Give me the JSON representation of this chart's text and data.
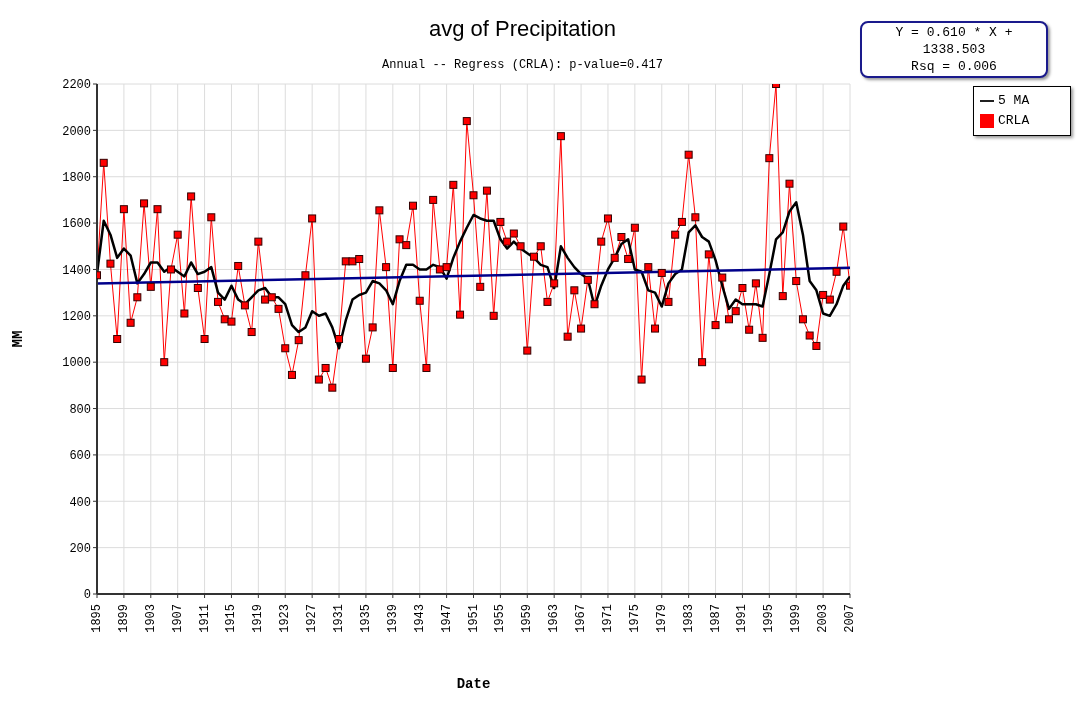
{
  "chart_data": {
    "type": "line",
    "title": "avg of Precipitation",
    "subtitle": "Annual -- Regress (CRLA): p-value=0.417",
    "xlabel": "Date",
    "ylabel": "MM",
    "annotations": [
      "Y = 0.610 * X + 1338.503",
      "Rsq = 0.006"
    ],
    "x": [
      1895,
      1896,
      1897,
      1898,
      1899,
      1900,
      1901,
      1902,
      1903,
      1904,
      1905,
      1906,
      1907,
      1908,
      1909,
      1910,
      1911,
      1912,
      1913,
      1914,
      1915,
      1916,
      1917,
      1918,
      1919,
      1920,
      1921,
      1922,
      1923,
      1924,
      1925,
      1926,
      1927,
      1928,
      1929,
      1930,
      1931,
      1932,
      1933,
      1934,
      1935,
      1936,
      1937,
      1938,
      1939,
      1940,
      1941,
      1942,
      1943,
      1944,
      1945,
      1946,
      1947,
      1948,
      1949,
      1950,
      1951,
      1952,
      1953,
      1954,
      1955,
      1956,
      1957,
      1958,
      1959,
      1960,
      1961,
      1962,
      1963,
      1964,
      1965,
      1966,
      1967,
      1968,
      1969,
      1970,
      1971,
      1972,
      1973,
      1974,
      1975,
      1976,
      1977,
      1978,
      1979,
      1980,
      1981,
      1982,
      1983,
      1984,
      1985,
      1986,
      1987,
      1988,
      1989,
      1990,
      1991,
      1992,
      1993,
      1994,
      1995,
      1996,
      1997,
      1998,
      1999,
      2000,
      2001,
      2002,
      2003,
      2004,
      2005,
      2006,
      2007
    ],
    "series": [
      {
        "name": "CRLA",
        "color": "#ff0000",
        "marker": "square",
        "values": [
          1375,
          1860,
          1425,
          1100,
          1660,
          1170,
          1280,
          1685,
          1325,
          1660,
          1000,
          1400,
          1550,
          1210,
          1715,
          1320,
          1100,
          1625,
          1260,
          1185,
          1175,
          1415,
          1245,
          1130,
          1520,
          1270,
          1280,
          1230,
          1060,
          945,
          1095,
          1375,
          1620,
          925,
          975,
          890,
          1100,
          1435,
          1435,
          1445,
          1015,
          1150,
          1655,
          1410,
          975,
          1530,
          1505,
          1675,
          1265,
          975,
          1700,
          1400,
          1410,
          1765,
          1205,
          2040,
          1720,
          1325,
          1740,
          1200,
          1605,
          1520,
          1555,
          1500,
          1050,
          1455,
          1500,
          1260,
          1340,
          1975,
          1110,
          1310,
          1145,
          1355,
          1250,
          1520,
          1620,
          1450,
          1540,
          1445,
          1580,
          925,
          1410,
          1145,
          1385,
          1260,
          1550,
          1605,
          1895,
          1625,
          1000,
          1465,
          1160,
          1365,
          1185,
          1220,
          1320,
          1140,
          1340,
          1105,
          1880,
          2200,
          1285,
          1770,
          1350,
          1185,
          1115,
          1070,
          1290,
          1270,
          1390,
          1585,
          1330
        ]
      },
      {
        "name": "5 MA",
        "color": "#000000",
        "marker": "none",
        "values": [
          1380,
          1610,
          1550,
          1450,
          1490,
          1460,
          1340,
          1380,
          1430,
          1430,
          1390,
          1410,
          1390,
          1370,
          1430,
          1380,
          1390,
          1410,
          1300,
          1270,
          1330,
          1270,
          1250,
          1280,
          1310,
          1320,
          1280,
          1280,
          1250,
          1160,
          1130,
          1150,
          1220,
          1200,
          1210,
          1150,
          1060,
          1180,
          1270,
          1290,
          1300,
          1350,
          1340,
          1310,
          1250,
          1350,
          1420,
          1420,
          1400,
          1400,
          1420,
          1410,
          1360,
          1450,
          1520,
          1580,
          1635,
          1620,
          1610,
          1610,
          1530,
          1490,
          1520,
          1490,
          1470,
          1450,
          1420,
          1410,
          1320,
          1500,
          1450,
          1410,
          1380,
          1360,
          1240,
          1330,
          1400,
          1450,
          1510,
          1530,
          1400,
          1390,
          1310,
          1300,
          1240,
          1340,
          1380,
          1400,
          1560,
          1590,
          1540,
          1520,
          1440,
          1330,
          1230,
          1270,
          1250,
          1250,
          1250,
          1240,
          1380,
          1530,
          1560,
          1650,
          1690,
          1550,
          1350,
          1310,
          1210,
          1200,
          1250,
          1330,
          1370
        ]
      },
      {
        "type": "line",
        "color": "#00008b",
        "marker": "none",
        "x": [
          1895,
          2007
        ],
        "values": [
          1339,
          1407
        ]
      }
    ],
    "xlim": [
      1895,
      2007
    ],
    "xticks": [
      1895,
      1899,
      1903,
      1907,
      1911,
      1915,
      1919,
      1923,
      1927,
      1931,
      1935,
      1939,
      1943,
      1947,
      1951,
      1955,
      1959,
      1963,
      1967,
      1971,
      1975,
      1979,
      1983,
      1987,
      1991,
      1995,
      1999,
      2003,
      2007
    ],
    "ylim": [
      0,
      2200
    ],
    "yticks": [
      0,
      200,
      400,
      600,
      800,
      1000,
      1200,
      1400,
      1600,
      1800,
      2000,
      2200
    ],
    "grid": true,
    "legend": "top right",
    "line_style": "solid"
  }
}
